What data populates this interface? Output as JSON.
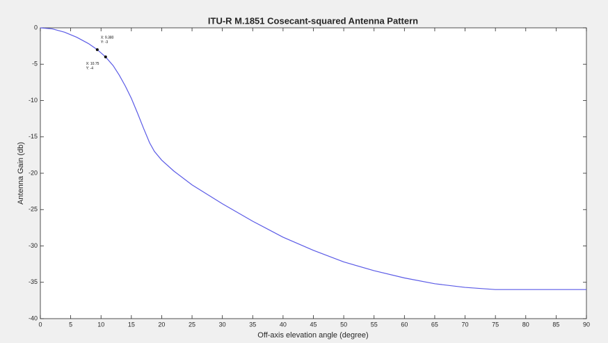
{
  "chart_data": {
    "type": "line",
    "title": "ITU-R M.1851 Cosecant-squared Antenna Pattern",
    "x_label": "Off-axis elevation angle (degree)",
    "y_label": "Antenna Gain (db)",
    "series": [
      {
        "color": "#5a5ae6",
        "x": [
          0,
          2,
          4,
          6,
          8,
          9.38,
          10.75,
          12,
          13,
          14,
          15,
          16,
          17,
          18,
          18.8,
          20,
          22,
          25,
          30,
          35,
          40,
          45,
          50,
          55,
          60,
          65,
          70,
          75,
          80,
          85,
          90
        ],
        "values": [
          0,
          -0.15,
          -0.6,
          -1.3,
          -2.2,
          -3,
          -4,
          -5.2,
          -6.5,
          -8,
          -9.7,
          -11.7,
          -13.8,
          -15.8,
          -17,
          -18.2,
          -19.7,
          -21.6,
          -24.2,
          -26.6,
          -28.8,
          -30.6,
          -32.2,
          -33.4,
          -34.4,
          -35.2,
          -35.7,
          -36,
          -36,
          -36,
          -36
        ]
      }
    ],
    "annotations": [
      {
        "x": 9.38,
        "y": -3,
        "lines": [
          "X: 9.380",
          "Y: -3"
        ]
      },
      {
        "x": 10.75,
        "y": -4,
        "lines": [
          "X: 10.75",
          "Y: -4"
        ]
      }
    ],
    "xlim": [
      0,
      90
    ],
    "ylim": [
      -40,
      0
    ],
    "xticks": [
      0,
      5,
      10,
      15,
      20,
      25,
      30,
      35,
      40,
      45,
      50,
      55,
      60,
      65,
      70,
      75,
      80,
      85,
      90
    ],
    "yticks": [
      -40,
      -35,
      -30,
      -25,
      -20,
      -15,
      -10,
      -5,
      0
    ],
    "grid": false
  }
}
